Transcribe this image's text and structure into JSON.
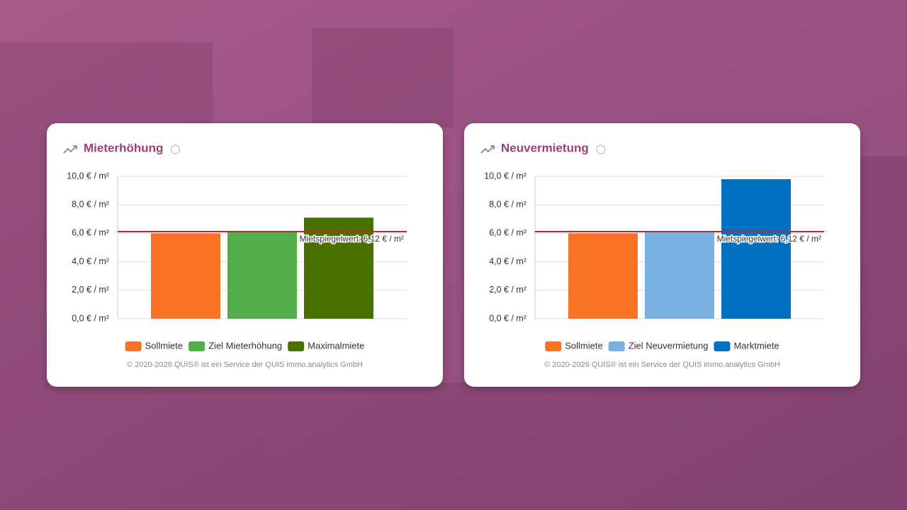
{
  "chart_data": [
    {
      "type": "bar",
      "title": "Mieterhöhung",
      "categories": [
        "Sollmiete",
        "Ziel Mieterhöhung",
        "Maximalmiete"
      ],
      "values": [
        6.0,
        6.12,
        7.1
      ],
      "colors": [
        "#fa7324",
        "#52ae48",
        "#4a7000"
      ],
      "ylim": [
        0,
        10
      ],
      "yticks": [
        {
          "value": 0,
          "label": "0,0 € / m²"
        },
        {
          "value": 2,
          "label": "2,0 € / m²"
        },
        {
          "value": 4,
          "label": "4,0 € / m²"
        },
        {
          "value": 6,
          "label": "6,0 € / m²"
        },
        {
          "value": 8,
          "label": "8,0 € / m²"
        },
        {
          "value": 10,
          "label": "10,0 € / m²"
        }
      ],
      "grid": true,
      "reference": {
        "value": 6.12,
        "label": "Mietspiegelwert: 6,12 € / m²",
        "color": "#c0262f"
      },
      "footer": "© 2020-2026 QUIS® ist ein Service der QUIS immo.analytics GmbH"
    },
    {
      "type": "bar",
      "title": "Neuvermietung",
      "categories": [
        "Sollmiete",
        "Ziel Neuvermietung",
        "Marktmiete"
      ],
      "values": [
        6.0,
        6.12,
        9.8
      ],
      "colors": [
        "#fa7324",
        "#7ab0e0",
        "#0070c0"
      ],
      "ylim": [
        0,
        10
      ],
      "yticks": [
        {
          "value": 0,
          "label": "0,0 € / m²"
        },
        {
          "value": 2,
          "label": "2,0 € / m²"
        },
        {
          "value": 4,
          "label": "4,0 € / m²"
        },
        {
          "value": 6,
          "label": "6,0 € / m²"
        },
        {
          "value": 8,
          "label": "8,0 € / m²"
        },
        {
          "value": 10,
          "label": "10,0 € / m²"
        }
      ],
      "grid": true,
      "reference": {
        "value": 6.12,
        "label": "Mietspiegelwert: 6,12 € / m²",
        "color": "#c0262f"
      },
      "footer": "© 2020-2026 QUIS® ist ein Service der QUIS immo.analytics GmbH"
    }
  ]
}
